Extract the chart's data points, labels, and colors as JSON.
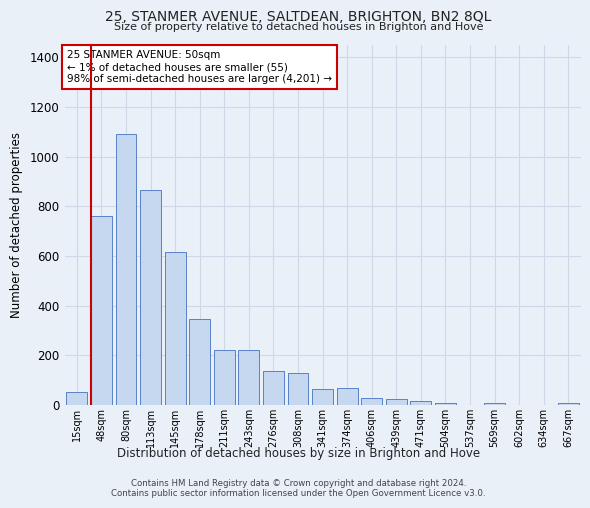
{
  "title": "25, STANMER AVENUE, SALTDEAN, BRIGHTON, BN2 8QL",
  "subtitle": "Size of property relative to detached houses in Brighton and Hove",
  "xlabel": "Distribution of detached houses by size in Brighton and Hove",
  "ylabel": "Number of detached properties",
  "categories": [
    "15sqm",
    "48sqm",
    "80sqm",
    "113sqm",
    "145sqm",
    "178sqm",
    "211sqm",
    "243sqm",
    "276sqm",
    "308sqm",
    "341sqm",
    "374sqm",
    "406sqm",
    "439sqm",
    "471sqm",
    "504sqm",
    "537sqm",
    "569sqm",
    "602sqm",
    "634sqm",
    "667sqm"
  ],
  "values": [
    52,
    760,
    1090,
    865,
    615,
    345,
    220,
    220,
    135,
    130,
    65,
    70,
    30,
    25,
    15,
    10,
    0,
    10,
    0,
    0,
    10
  ],
  "bar_color": "#c5d8f0",
  "bar_edge_color": "#4472c4",
  "grid_color": "#d0d8e8",
  "bg_color": "#eaf0f8",
  "annotation_text": "25 STANMER AVENUE: 50sqm\n← 1% of detached houses are smaller (55)\n98% of semi-detached houses are larger (4,201) →",
  "annotation_box_color": "#ffffff",
  "annotation_box_edge": "#cc0000",
  "vline_color": "#cc0000",
  "ylim": [
    0,
    1450
  ],
  "yticks": [
    0,
    200,
    400,
    600,
    800,
    1000,
    1200,
    1400
  ],
  "footer1": "Contains HM Land Registry data © Crown copyright and database right 2024.",
  "footer2": "Contains public sector information licensed under the Open Government Licence v3.0."
}
